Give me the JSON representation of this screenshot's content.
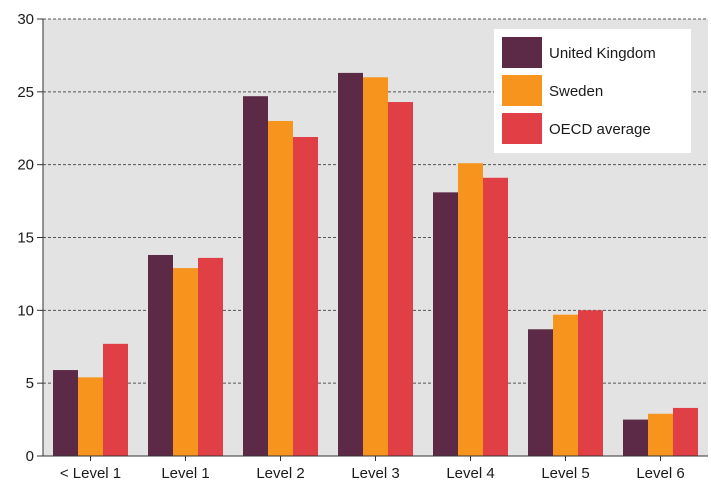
{
  "chart_data": {
    "type": "bar",
    "categories": [
      "< Level 1",
      "Level 1",
      "Level 2",
      "Level 3",
      "Level 4",
      "Level 5",
      "Level 6"
    ],
    "series": [
      {
        "name": "United Kingdom",
        "color": "#5c2a47",
        "values": [
          5.9,
          13.8,
          24.7,
          26.3,
          18.1,
          8.7,
          2.5
        ]
      },
      {
        "name": "Sweden",
        "color": "#f7941d",
        "values": [
          5.4,
          12.9,
          23.0,
          26.0,
          20.1,
          9.7,
          2.9
        ]
      },
      {
        "name": "OECD average",
        "color": "#e03f45",
        "values": [
          7.7,
          13.6,
          21.9,
          24.3,
          19.1,
          10.0,
          3.3
        ]
      }
    ],
    "ylim": [
      0,
      30
    ],
    "yticks": [
      0,
      5,
      10,
      15,
      20,
      25,
      30
    ],
    "grid": "horizontal dashed",
    "legend": "top-right",
    "title": "",
    "xlabel": "",
    "ylabel": "",
    "plot_background": "#e3e3e3"
  }
}
